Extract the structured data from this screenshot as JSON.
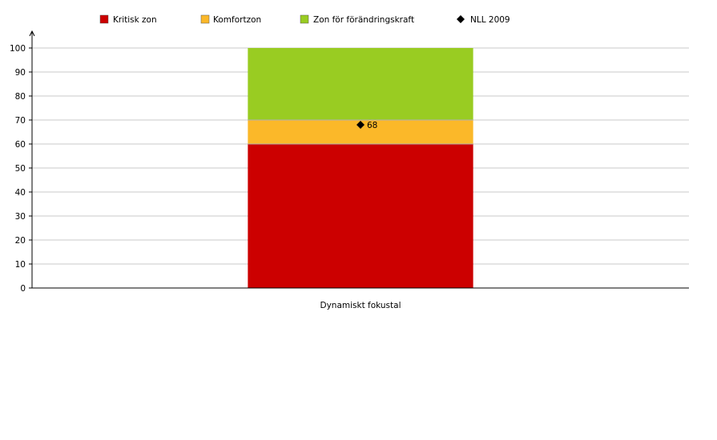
{
  "legend": {
    "critical_label": "Kritisk zon",
    "comfort_label": "Komfortzon",
    "change_label": "Zon för förändringskraft",
    "marker_label": "NLL 2009"
  },
  "chart_data": {
    "type": "bar",
    "stacked": true,
    "categories": [
      "Dynamiskt fokustal"
    ],
    "series": [
      {
        "name": "Kritisk zon",
        "values": [
          60
        ],
        "color": "#cc0000"
      },
      {
        "name": "Komfortzon",
        "values": [
          10
        ],
        "color": "#fbb829"
      },
      {
        "name": "Zon för förändringskraft",
        "values": [
          30
        ],
        "color": "#99cc22"
      }
    ],
    "markers": [
      {
        "name": "NLL 2009",
        "category": "Dynamiskt fokustal",
        "value": 68,
        "label": "68",
        "shape": "diamond",
        "color": "#000000"
      }
    ],
    "ylim": [
      0,
      100
    ],
    "yticks": [
      0,
      10,
      20,
      30,
      40,
      50,
      60,
      70,
      80,
      90,
      100
    ],
    "xlabel": "",
    "ylabel": "",
    "grid": true,
    "legend_position": "top"
  }
}
